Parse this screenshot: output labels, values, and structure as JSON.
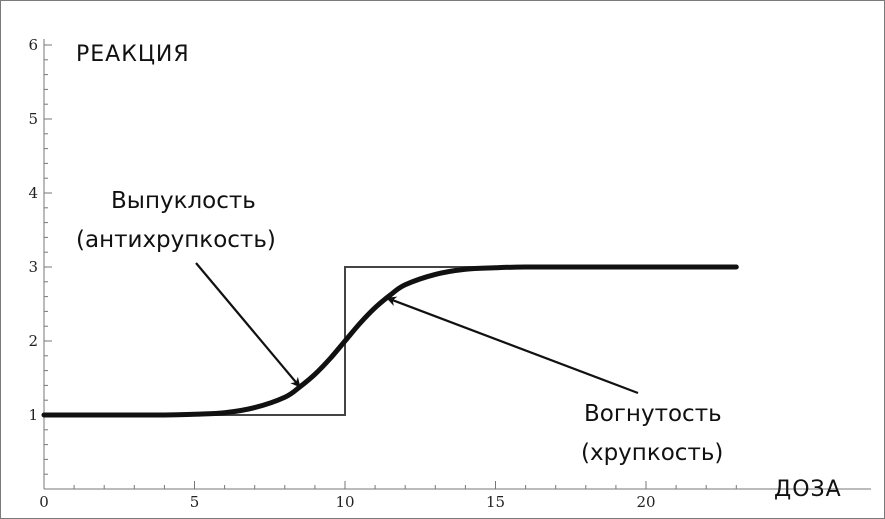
{
  "chart_data": {
    "type": "line",
    "ylabel": "РЕАКЦИЯ",
    "xlabel": "ДОЗА",
    "xlim": [
      0,
      24
    ],
    "ylim": [
      0,
      6
    ],
    "x_ticks": [
      0,
      5,
      10,
      15,
      20
    ],
    "y_ticks": [
      1,
      2,
      3,
      4,
      5,
      6
    ],
    "grid": false,
    "series": [
      {
        "style": "step",
        "color": "#444444",
        "x": [
          0,
          10,
          10,
          23
        ],
        "y": [
          1,
          1,
          3,
          3
        ]
      },
      {
        "style": "sigmoid",
        "color": "#111111",
        "x": [
          0,
          2,
          4,
          5,
          6,
          7,
          8,
          8.5,
          9,
          9.5,
          10,
          10.5,
          11,
          11.5,
          12,
          13,
          14,
          15,
          16,
          18,
          20,
          23
        ],
        "y": [
          1.0,
          1.0,
          1.0,
          1.01,
          1.03,
          1.1,
          1.24,
          1.38,
          1.55,
          1.76,
          2.0,
          2.24,
          2.45,
          2.62,
          2.76,
          2.9,
          2.97,
          2.99,
          3.0,
          3.0,
          3.0,
          3.0
        ]
      }
    ],
    "annotations": [
      {
        "lines": [
          "Выпуклость",
          "(антихрупкость)"
        ],
        "arrow_to": [
          8.5,
          1.38
        ]
      },
      {
        "lines": [
          "Вогнутость",
          "(хрупкость)"
        ],
        "arrow_to": [
          11.4,
          2.58
        ]
      }
    ]
  }
}
